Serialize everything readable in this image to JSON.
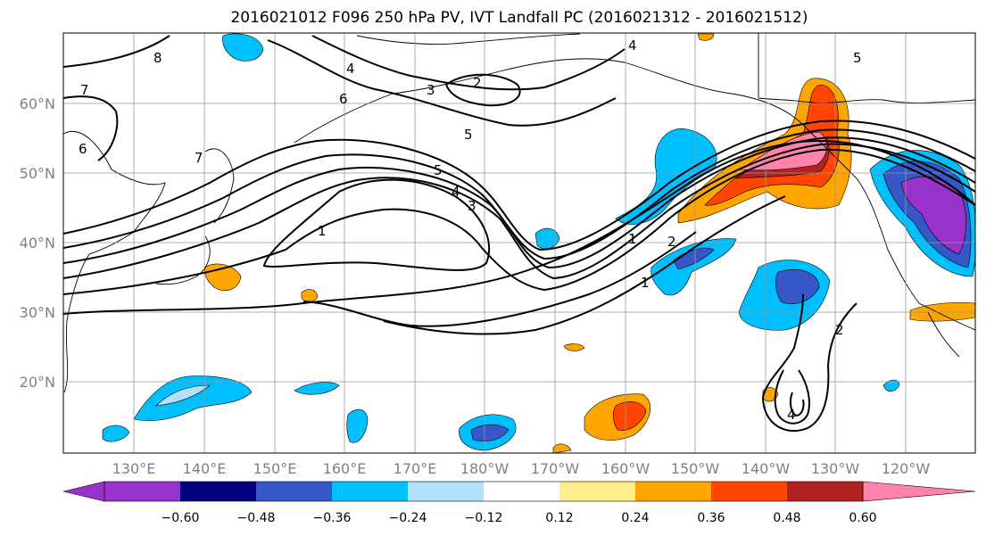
{
  "title": "2016021012 F096 250 hPa PV, IVT Landfall PC (2016021312 - 2016021512)",
  "map": {
    "lat_labels": [
      "60°N",
      "50°N",
      "40°N",
      "30°N",
      "20°N"
    ],
    "lon_labels": [
      "130°E",
      "140°E",
      "150°E",
      "160°E",
      "170°E",
      "180°W",
      "170°W",
      "160°W",
      "150°W",
      "140°W",
      "130°W",
      "120°W"
    ],
    "pv_contour_labels": [
      "1",
      "1",
      "1",
      "2",
      "2",
      "3",
      "3",
      "4",
      "4",
      "4",
      "5",
      "5",
      "5",
      "6",
      "6",
      "7",
      "7",
      "8",
      "4",
      "2"
    ]
  },
  "colorbar": {
    "ticks": [
      "−0.60",
      "−0.48",
      "−0.36",
      "−0.24",
      "−0.12",
      "0.12",
      "0.24",
      "0.36",
      "0.48",
      "0.60"
    ],
    "colors": [
      "#9932cc",
      "#000080",
      "#3657c8",
      "#00bfff",
      "#b0e0fa",
      "#ffffff",
      "#ffec8b",
      "#ffa500",
      "#ff4500",
      "#b22222",
      "#ff82ab"
    ]
  }
}
